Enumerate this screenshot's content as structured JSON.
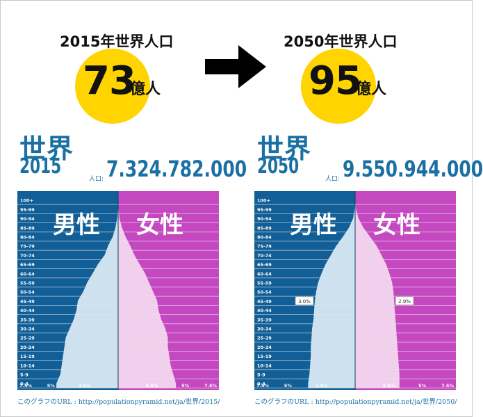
{
  "header": {
    "left": {
      "title": "2015年世界人口",
      "number": "73",
      "unit": "億人"
    },
    "right": {
      "title": "2050年世界人口",
      "number": "95",
      "unit": "億人"
    }
  },
  "colors": {
    "male": "#125e96",
    "female": "#c449c0",
    "pyramid_male": "#d9e8f2",
    "pyramid_female": "#f3d8ef",
    "accent": "#ffd400",
    "title": "#1a6fa3"
  },
  "icons": {
    "arrow": "right-arrow-icon"
  },
  "chart_data": [
    {
      "type": "population_pyramid",
      "region": "世界",
      "year": "2015",
      "population_label": "人口:",
      "population": "7.324.782.000",
      "male_label": "男性",
      "female_label": "女性",
      "age_groups": [
        "0-4",
        "5-9",
        "10-14",
        "15-19",
        "20-24",
        "25-29",
        "30-34",
        "35-39",
        "40-44",
        "45-49",
        "50-54",
        "55-59",
        "60-64",
        "65-69",
        "70-74",
        "75-79",
        "80-84",
        "85-89",
        "90-94",
        "95-99",
        "100+"
      ],
      "male_percent": [
        4.6,
        4.3,
        4.2,
        4.1,
        4.0,
        3.9,
        3.6,
        3.3,
        3.1,
        3.0,
        2.6,
        2.3,
        1.9,
        1.5,
        1.0,
        0.75,
        0.4,
        0.2,
        0.07,
        0.02,
        0.01
      ],
      "female_percent": [
        4.3,
        4.1,
        3.9,
        3.8,
        3.7,
        3.7,
        3.5,
        3.2,
        3.0,
        2.9,
        2.6,
        2.3,
        2.0,
        1.6,
        1.2,
        0.9,
        0.55,
        0.28,
        0.1,
        0.03,
        0.01
      ],
      "x_ticks_left": [
        "7.5%",
        "5%",
        "2.5%"
      ],
      "x_ticks_right": [
        "2.5%",
        "5%",
        "7.5%"
      ],
      "xlim": [
        -7.5,
        7.5
      ],
      "annotations": [],
      "url": "このグラフのURL : http://populationpyramid.net/ja/世界/2015/"
    },
    {
      "type": "population_pyramid",
      "region": "世界",
      "year": "2050",
      "population_label": "人口:",
      "population": "9.550.944.000",
      "male_label": "男性",
      "female_label": "女性",
      "age_groups": [
        "0-4",
        "5-9",
        "10-14",
        "15-19",
        "20-24",
        "25-29",
        "30-34",
        "35-39",
        "40-44",
        "45-49",
        "50-54",
        "55-59",
        "60-64",
        "65-69",
        "70-74",
        "75-79",
        "80-84",
        "85-89",
        "90-94",
        "95-99",
        "100+"
      ],
      "male_percent": [
        3.5,
        3.4,
        3.35,
        3.3,
        3.3,
        3.25,
        3.2,
        3.1,
        3.05,
        3.0,
        2.9,
        2.75,
        2.5,
        2.2,
        1.8,
        1.4,
        0.9,
        0.45,
        0.15,
        0.04,
        0.01
      ],
      "female_percent": [
        3.3,
        3.3,
        3.25,
        3.2,
        3.15,
        3.1,
        3.05,
        3.0,
        2.95,
        2.9,
        2.85,
        2.75,
        2.55,
        2.3,
        1.95,
        1.6,
        1.1,
        0.6,
        0.25,
        0.06,
        0.01
      ],
      "x_ticks_left": [
        "7.5%",
        "5%",
        "2.5%"
      ],
      "x_ticks_right": [
        "2.5%",
        "5%",
        "7.5%"
      ],
      "xlim": [
        -7.5,
        7.5
      ],
      "annotations": [
        {
          "side": "male",
          "age_group": "45-49",
          "text": "3.0%"
        },
        {
          "side": "female",
          "age_group": "45-49",
          "text": "2.9%"
        }
      ],
      "url": "このグラフのURL : http://populationpyramid.net/ja/世界/2050/"
    }
  ]
}
